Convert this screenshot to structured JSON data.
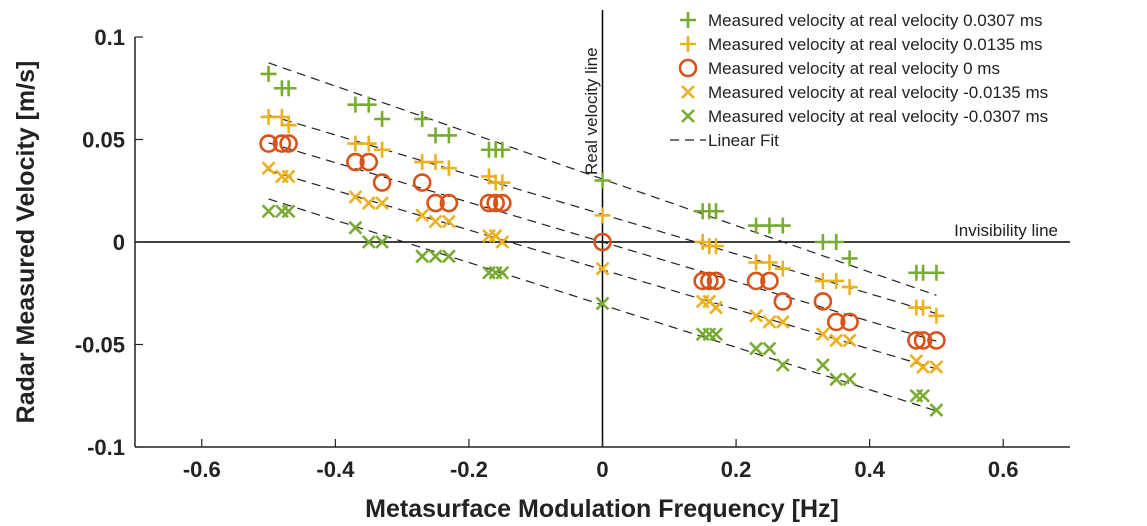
{
  "chart_data": {
    "type": "scatter",
    "title": "",
    "xlabel": "Metasurface Modulation Frequency [Hz]",
    "ylabel": "Radar Measured Velocity [m/s]",
    "xlim": [
      -0.7,
      0.7
    ],
    "ylim": [
      -0.1,
      0.1
    ],
    "xticks": [
      -0.6,
      -0.4,
      -0.2,
      0,
      0.2,
      0.4,
      0.6
    ],
    "xtick_labels": [
      "-0.6",
      "-0.4",
      "-0.2",
      "0",
      "0.2",
      "0.4",
      "0.6"
    ],
    "yticks": [
      -0.1,
      -0.05,
      0,
      0.05,
      0.1
    ],
    "ytick_labels": [
      "-0.1",
      "-0.05",
      "0",
      "0.05",
      "0.1"
    ],
    "grid": false,
    "legend_position": "top-right",
    "annotations": {
      "vertical_line_label": "Real velocity line",
      "horizontal_line_label": "Invisibility line"
    },
    "fit_label": "Linear Fit",
    "series": [
      {
        "name": "Measured velocity at real velocity 0.0307 ms",
        "marker": "plus",
        "color": "#77ac30",
        "real_velocity": 0.0307,
        "fit": {
          "intercept": 0.0307,
          "slope": -0.1134
        },
        "points": [
          {
            "x": -0.5,
            "y": 0.082
          },
          {
            "x": -0.48,
            "y": 0.075
          },
          {
            "x": -0.47,
            "y": 0.075
          },
          {
            "x": -0.37,
            "y": 0.067
          },
          {
            "x": -0.35,
            "y": 0.067
          },
          {
            "x": -0.33,
            "y": 0.06
          },
          {
            "x": -0.27,
            "y": 0.06
          },
          {
            "x": -0.25,
            "y": 0.052
          },
          {
            "x": -0.23,
            "y": 0.052
          },
          {
            "x": -0.17,
            "y": 0.045
          },
          {
            "x": -0.16,
            "y": 0.045
          },
          {
            "x": -0.15,
            "y": 0.045
          },
          {
            "x": 0,
            "y": 0.03
          },
          {
            "x": 0.15,
            "y": 0.015
          },
          {
            "x": 0.16,
            "y": 0.015
          },
          {
            "x": 0.17,
            "y": 0.015
          },
          {
            "x": 0.23,
            "y": 0.008
          },
          {
            "x": 0.25,
            "y": 0.008
          },
          {
            "x": 0.27,
            "y": 0.008
          },
          {
            "x": 0.33,
            "y": 0
          },
          {
            "x": 0.35,
            "y": 0
          },
          {
            "x": 0.37,
            "y": -0.008
          },
          {
            "x": 0.47,
            "y": -0.015
          },
          {
            "x": 0.48,
            "y": -0.015
          },
          {
            "x": 0.5,
            "y": -0.015
          }
        ]
      },
      {
        "name": "Measured velocity at real velocity 0.0135 ms",
        "marker": "plus",
        "color": "#edb120",
        "real_velocity": 0.0135,
        "fit": {
          "intercept": 0.0135,
          "slope": -0.0968
        },
        "points": [
          {
            "x": -0.5,
            "y": 0.061
          },
          {
            "x": -0.48,
            "y": 0.061
          },
          {
            "x": -0.47,
            "y": 0.057
          },
          {
            "x": -0.37,
            "y": 0.048
          },
          {
            "x": -0.35,
            "y": 0.048
          },
          {
            "x": -0.33,
            "y": 0.045
          },
          {
            "x": -0.27,
            "y": 0.039
          },
          {
            "x": -0.25,
            "y": 0.039
          },
          {
            "x": -0.23,
            "y": 0.036
          },
          {
            "x": -0.17,
            "y": 0.032
          },
          {
            "x": -0.16,
            "y": 0.029
          },
          {
            "x": -0.15,
            "y": 0.029
          },
          {
            "x": 0,
            "y": 0.013
          },
          {
            "x": 0.15,
            "y": 0
          },
          {
            "x": 0.16,
            "y": -0.002
          },
          {
            "x": 0.17,
            "y": -0.002
          },
          {
            "x": 0.23,
            "y": -0.01
          },
          {
            "x": 0.25,
            "y": -0.01
          },
          {
            "x": 0.27,
            "y": -0.013
          },
          {
            "x": 0.33,
            "y": -0.019
          },
          {
            "x": 0.35,
            "y": -0.019
          },
          {
            "x": 0.37,
            "y": -0.022
          },
          {
            "x": 0.47,
            "y": -0.032
          },
          {
            "x": 0.48,
            "y": -0.032
          },
          {
            "x": 0.5,
            "y": -0.036
          }
        ]
      },
      {
        "name": "Measured velocity at real velocity 0 ms",
        "marker": "circle",
        "color": "#d95319",
        "real_velocity": 0,
        "fit": {
          "intercept": 0,
          "slope": -0.0968
        },
        "points": [
          {
            "x": -0.5,
            "y": 0.048
          },
          {
            "x": -0.48,
            "y": 0.048
          },
          {
            "x": -0.47,
            "y": 0.048
          },
          {
            "x": -0.37,
            "y": 0.039
          },
          {
            "x": -0.35,
            "y": 0.039
          },
          {
            "x": -0.33,
            "y": 0.029
          },
          {
            "x": -0.27,
            "y": 0.029
          },
          {
            "x": -0.25,
            "y": 0.019
          },
          {
            "x": -0.23,
            "y": 0.019
          },
          {
            "x": -0.17,
            "y": 0.019
          },
          {
            "x": -0.16,
            "y": 0.019
          },
          {
            "x": -0.15,
            "y": 0.019
          },
          {
            "x": 0,
            "y": 0
          },
          {
            "x": 0.15,
            "y": -0.019
          },
          {
            "x": 0.16,
            "y": -0.019
          },
          {
            "x": 0.17,
            "y": -0.019
          },
          {
            "x": 0.23,
            "y": -0.019
          },
          {
            "x": 0.25,
            "y": -0.019
          },
          {
            "x": 0.27,
            "y": -0.029
          },
          {
            "x": 0.33,
            "y": -0.029
          },
          {
            "x": 0.35,
            "y": -0.039
          },
          {
            "x": 0.37,
            "y": -0.039
          },
          {
            "x": 0.47,
            "y": -0.048
          },
          {
            "x": 0.48,
            "y": -0.048
          },
          {
            "x": 0.5,
            "y": -0.048
          }
        ]
      },
      {
        "name": "Measured velocity at real velocity -0.0135 ms",
        "marker": "cross",
        "color": "#edb120",
        "real_velocity": -0.0135,
        "fit": {
          "intercept": -0.0135,
          "slope": -0.0968
        },
        "points": [
          {
            "x": -0.5,
            "y": 0.036
          },
          {
            "x": -0.48,
            "y": 0.032
          },
          {
            "x": -0.47,
            "y": 0.032
          },
          {
            "x": -0.37,
            "y": 0.022
          },
          {
            "x": -0.35,
            "y": 0.019
          },
          {
            "x": -0.33,
            "y": 0.019
          },
          {
            "x": -0.27,
            "y": 0.013
          },
          {
            "x": -0.25,
            "y": 0.01
          },
          {
            "x": -0.23,
            "y": 0.01
          },
          {
            "x": -0.17,
            "y": 0.003
          },
          {
            "x": -0.16,
            "y": 0.003
          },
          {
            "x": -0.15,
            "y": 0
          },
          {
            "x": 0,
            "y": -0.013
          },
          {
            "x": 0.15,
            "y": -0.029
          },
          {
            "x": 0.16,
            "y": -0.029
          },
          {
            "x": 0.17,
            "y": -0.032
          },
          {
            "x": 0.23,
            "y": -0.036
          },
          {
            "x": 0.25,
            "y": -0.039
          },
          {
            "x": 0.27,
            "y": -0.039
          },
          {
            "x": 0.33,
            "y": -0.045
          },
          {
            "x": 0.35,
            "y": -0.048
          },
          {
            "x": 0.37,
            "y": -0.048
          },
          {
            "x": 0.47,
            "y": -0.058
          },
          {
            "x": 0.48,
            "y": -0.061
          },
          {
            "x": 0.5,
            "y": -0.061
          }
        ]
      },
      {
        "name": "Measured velocity at real velocity -0.0307 ms",
        "marker": "cross",
        "color": "#77ac30",
        "real_velocity": -0.0307,
        "fit": {
          "intercept": -0.0307,
          "slope": -0.1034
        },
        "points": [
          {
            "x": -0.5,
            "y": 0.015
          },
          {
            "x": -0.48,
            "y": 0.015
          },
          {
            "x": -0.47,
            "y": 0.015
          },
          {
            "x": -0.37,
            "y": 0.007
          },
          {
            "x": -0.35,
            "y": 0
          },
          {
            "x": -0.33,
            "y": 0
          },
          {
            "x": -0.27,
            "y": -0.007
          },
          {
            "x": -0.25,
            "y": -0.007
          },
          {
            "x": -0.23,
            "y": -0.007
          },
          {
            "x": -0.17,
            "y": -0.015
          },
          {
            "x": -0.16,
            "y": -0.015
          },
          {
            "x": -0.15,
            "y": -0.015
          },
          {
            "x": 0,
            "y": -0.03
          },
          {
            "x": 0.15,
            "y": -0.045
          },
          {
            "x": 0.16,
            "y": -0.045
          },
          {
            "x": 0.17,
            "y": -0.045
          },
          {
            "x": 0.23,
            "y": -0.052
          },
          {
            "x": 0.25,
            "y": -0.052
          },
          {
            "x": 0.27,
            "y": -0.06
          },
          {
            "x": 0.33,
            "y": -0.06
          },
          {
            "x": 0.35,
            "y": -0.067
          },
          {
            "x": 0.37,
            "y": -0.067
          },
          {
            "x": 0.47,
            "y": -0.075
          },
          {
            "x": 0.48,
            "y": -0.075
          },
          {
            "x": 0.5,
            "y": -0.082
          }
        ]
      }
    ]
  }
}
